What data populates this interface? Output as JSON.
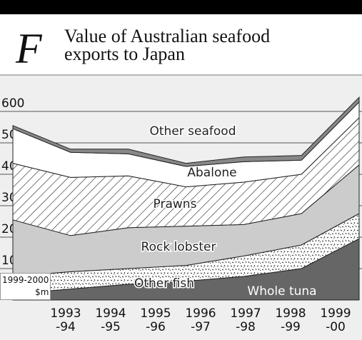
{
  "chart_data": {
    "type": "stacked_area",
    "panel_label": "F",
    "title": "Value of Australian seafood exports to Japan",
    "y_label": "1999-2000\n$m",
    "categories": [
      "1993\n-94",
      "1994\n-95",
      "1995\n-96",
      "1996\n-97",
      "1997\n-98",
      "1998\n-99",
      "1999\n-00"
    ],
    "series": [
      {
        "name": "Whole tuna",
        "color": "#666666",
        "values": [
          20,
          35,
          50,
          60,
          75,
          100,
          195
        ]
      },
      {
        "name": "Other fish",
        "color": "speckle",
        "values": [
          55,
          55,
          50,
          50,
          65,
          75,
          80
        ]
      },
      {
        "name": "Rock lobster",
        "color": "#cccccc",
        "values": [
          180,
          115,
          130,
          125,
          100,
          100,
          155
        ]
      },
      {
        "name": "Prawns",
        "color": "hatch",
        "values": [
          180,
          185,
          165,
          125,
          135,
          125,
          150
        ]
      },
      {
        "name": "Abalone",
        "color": "#ffffff",
        "values": [
          110,
          80,
          70,
          65,
          65,
          45,
          50
        ]
      },
      {
        "name": "Other seafood",
        "color": "#888888",
        "values": [
          10,
          10,
          15,
          10,
          15,
          15,
          15
        ]
      }
    ],
    "ylim": [
      0,
      650
    ],
    "yticks": [
      100,
      200,
      300,
      400,
      500,
      600
    ],
    "grid": true
  }
}
